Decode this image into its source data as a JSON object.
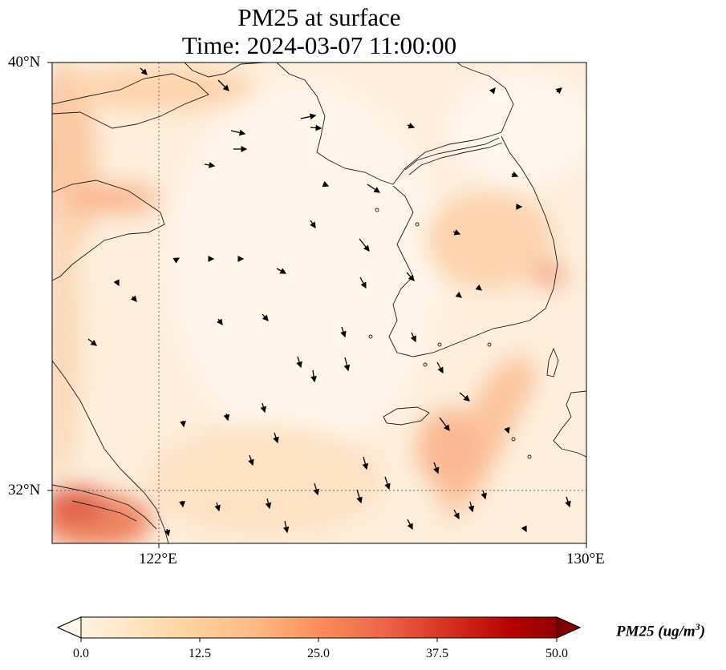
{
  "title": {
    "line1": "PM25 at surface",
    "line2": "Time: 2024-03-07 11:00:00"
  },
  "map": {
    "lat_labels": [
      "40°N",
      "32°N"
    ],
    "lon_labels": [
      "122°E",
      "130°E"
    ],
    "extent": {
      "lon_min": 120,
      "lon_max": 130,
      "lat_min": 31,
      "lat_max": 40
    },
    "gridlines": {
      "lons": [
        122
      ],
      "lats": [
        32
      ],
      "style": "dotted"
    },
    "colormap": "OrRd",
    "high_concentration_areas": [
      "northwest edge",
      "southwest corner near Yangtze estuary",
      "southeast diagonal band",
      "east coast of Korea"
    ]
  },
  "colorbar": {
    "ticks": [
      "0.0",
      "12.5",
      "25.0",
      "37.5",
      "50.0"
    ],
    "label_main": "PM25 (ug/m",
    "label_sup": "3",
    "label_close": ")",
    "min": 0,
    "max": 50,
    "extend": "both",
    "colors": [
      "#fff7ec",
      "#fee8c8",
      "#fdd49e",
      "#fdbb84",
      "#fc8d59",
      "#ef6548",
      "#d7301f",
      "#b30000",
      "#7f0000"
    ]
  }
}
